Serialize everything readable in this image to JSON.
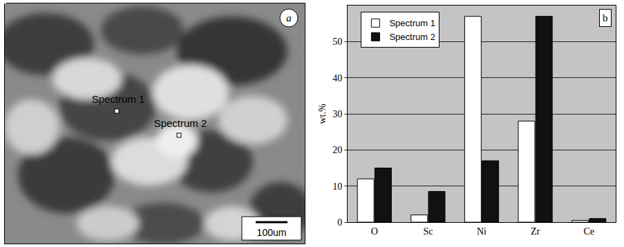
{
  "micrograph": {
    "label": "a",
    "markers": [
      {
        "label": "Spectrum 1"
      },
      {
        "label": "Spectrum 2"
      }
    ],
    "scale_bar": "100um"
  },
  "chart_data": {
    "type": "bar",
    "y_label": "wt.%",
    "annotations": [
      "b"
    ],
    "categories": [
      "O",
      "Sc",
      "Ni",
      "Zr",
      "Ce"
    ],
    "series": [
      {
        "name": "Spectrum 1",
        "color": "#ffffff",
        "values": [
          12,
          2,
          57,
          28,
          0.5
        ]
      },
      {
        "name": "Spectrum 2",
        "color": "#111111",
        "values": [
          15,
          8.5,
          17,
          57,
          1
        ]
      }
    ],
    "ylim": [
      0,
      60
    ],
    "yticks": [
      0,
      10,
      20,
      30,
      40,
      50
    ],
    "grid": true,
    "legend": "top-left"
  }
}
